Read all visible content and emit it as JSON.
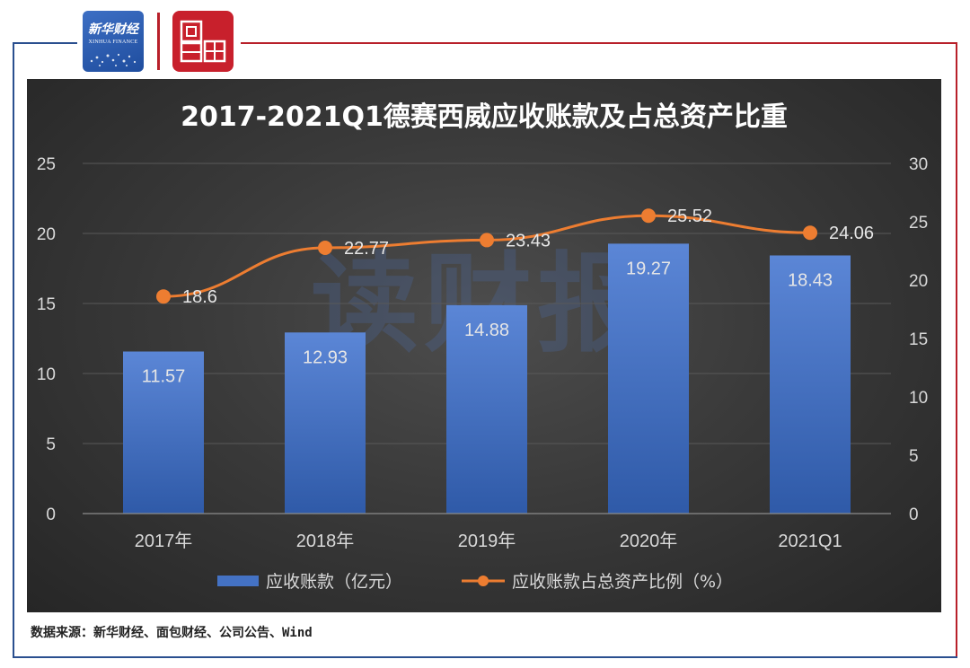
{
  "brand": {
    "xinhua_cn": "新华财经",
    "xinhua_en": "XINHUA FINANCE",
    "mianbao": "面包财经"
  },
  "watermark": "读财报",
  "source_text": "数据来源：新华财经、面包财经、公司公告、Wind",
  "chart_data": {
    "type": "bar",
    "title": "2017-2021Q1德赛西威应收账款及占总资产比重",
    "categories": [
      "2017年",
      "2018年",
      "2019年",
      "2020年",
      "2021Q1"
    ],
    "series": [
      {
        "name": "应收账款（亿元）",
        "type": "bar",
        "axis": "left",
        "color": "#4472c4",
        "values": [
          11.57,
          12.93,
          14.88,
          19.27,
          18.43
        ]
      },
      {
        "name": "应收账款占总资产比例（%）",
        "type": "line",
        "axis": "right",
        "color": "#ed7d31",
        "values": [
          18.6,
          22.77,
          23.43,
          25.52,
          24.06
        ]
      }
    ],
    "y_left": {
      "min": 0,
      "max": 25,
      "ticks": [
        0,
        5,
        10,
        15,
        20,
        25
      ]
    },
    "y_right": {
      "min": 0,
      "max": 30,
      "ticks": [
        0,
        5,
        10,
        15,
        20,
        25,
        30
      ]
    },
    "grid": true,
    "legend_position": "bottom",
    "colors": {
      "background": "#333333",
      "text": "#d9d9d9",
      "bar": "#4472c4",
      "line": "#ed7d31",
      "grid": "#595959"
    }
  }
}
